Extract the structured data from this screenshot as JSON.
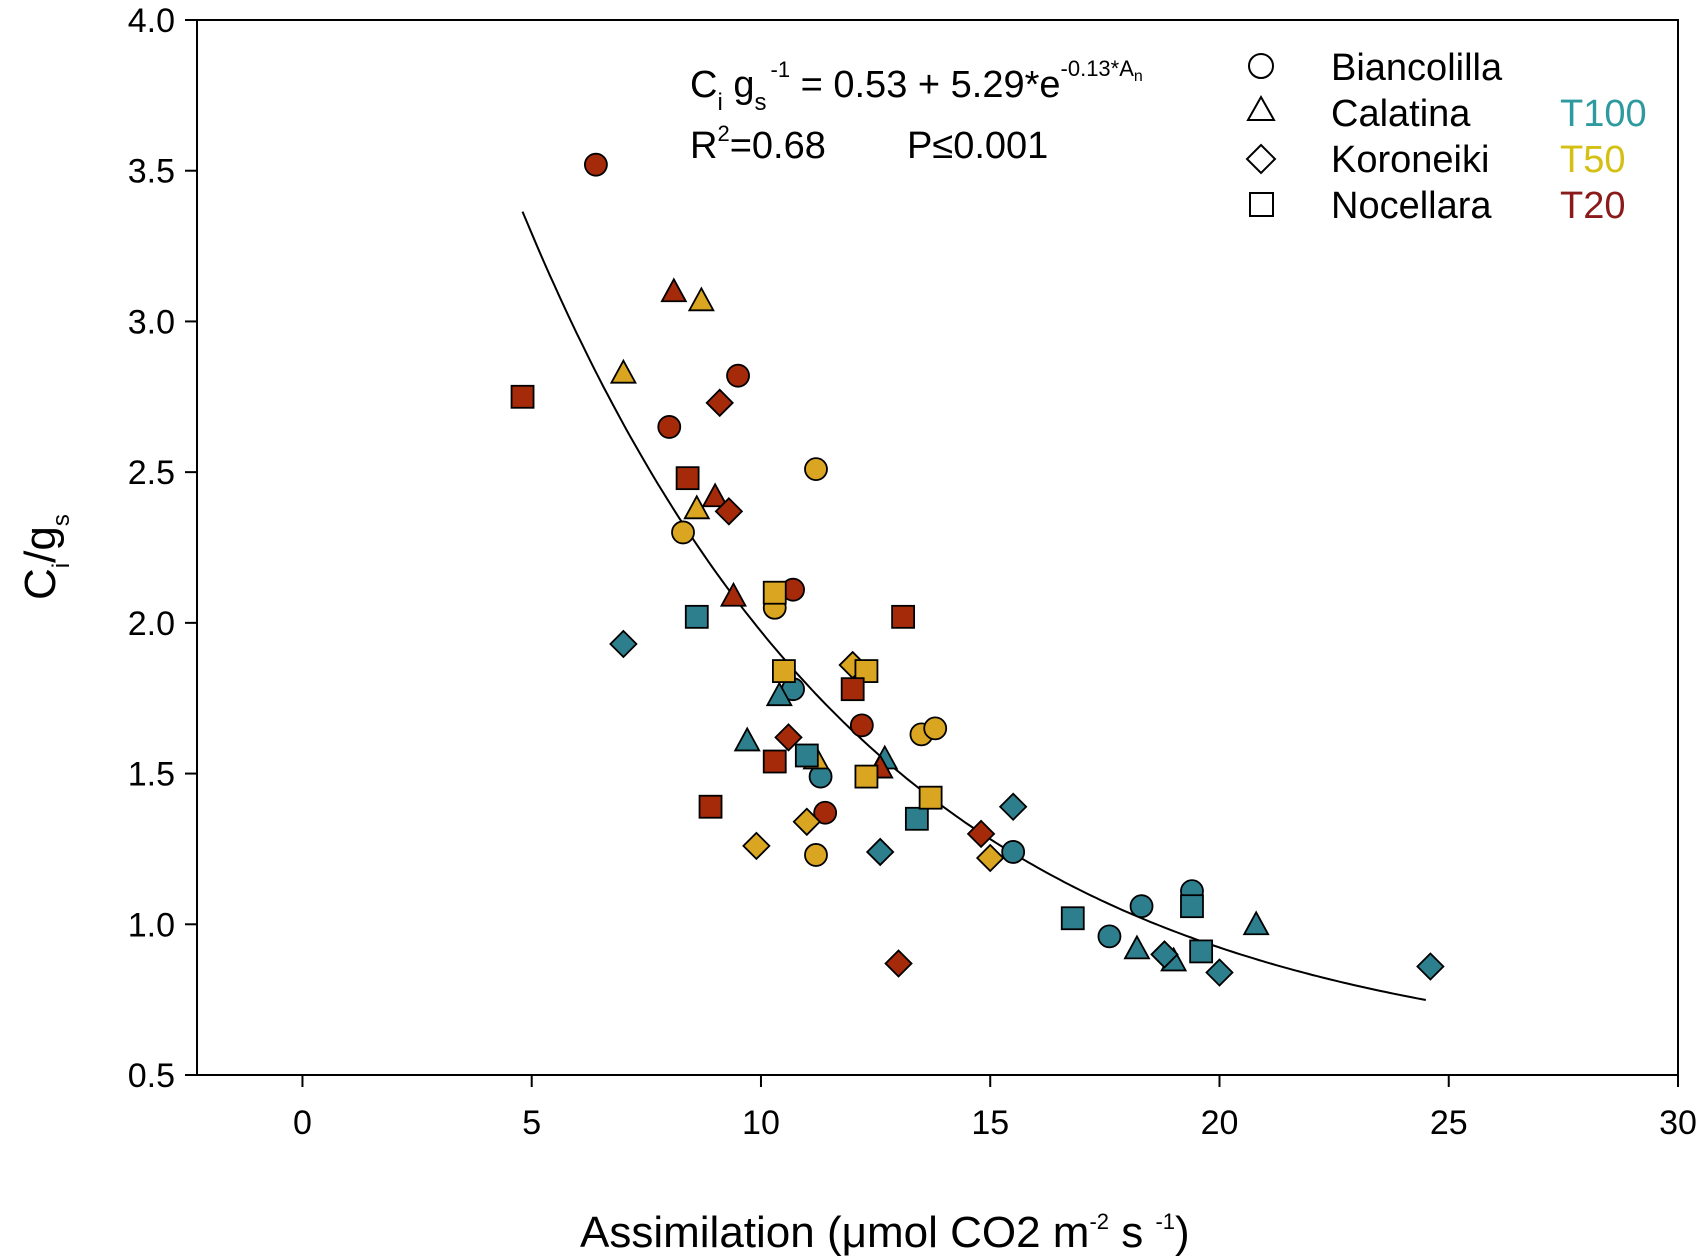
{
  "chart_data": {
    "type": "scatter",
    "title": "",
    "xlabel": {
      "main": "Assimilation (μmol CO2 m",
      "sup1": "-2",
      "mid": " s ",
      "sup2": "-1",
      "end": ")"
    },
    "ylabel": {
      "c": "C",
      "i": "i",
      "slash_g": "/g",
      "s": "s"
    },
    "xlim": [
      -2.3,
      30
    ],
    "ylim": [
      0.5,
      4.0
    ],
    "xticks": [
      "0",
      "5",
      "10",
      "15",
      "20",
      "25",
      "30"
    ],
    "yticks": [
      "0.5",
      "1.0",
      "1.5",
      "2.0",
      "2.5",
      "3.0",
      "3.5",
      "4.0"
    ],
    "grid": false,
    "equation": {
      "c": "C",
      "i": "i",
      "g": " g",
      "s": "s",
      "exp1": "-1",
      "rhs": " = 0.53 + 5.29*e",
      "exp2": "-0.13*A",
      "n": "n",
      "r2_label": "R",
      "r2_sup": "2",
      "r2_value": "=0.68",
      "p_value": "P≤0.001"
    },
    "fit": {
      "a": 0.53,
      "b": 5.29,
      "k": -0.13,
      "x_range": [
        4.8,
        24.5
      ]
    },
    "cultivars": [
      {
        "name": "Biancolilla",
        "shape": "circle"
      },
      {
        "name": "Calatina",
        "shape": "triangle"
      },
      {
        "name": "Koroneiki",
        "shape": "diamond"
      },
      {
        "name": "Nocellara",
        "shape": "square"
      }
    ],
    "treatments": [
      {
        "name": "T100",
        "color": "#2E7F8E"
      },
      {
        "name": "T50",
        "color": "#DAA520"
      },
      {
        "name": "T20",
        "color": "#A52A0A"
      }
    ],
    "series": [
      {
        "cultivar": "Biancolilla",
        "treatment": "T100",
        "points": [
          [
            10.7,
            1.78
          ],
          [
            11.3,
            1.49
          ],
          [
            15.5,
            1.24
          ],
          [
            17.6,
            0.96
          ],
          [
            18.3,
            1.06
          ],
          [
            19.4,
            1.11
          ]
        ]
      },
      {
        "cultivar": "Biancolilla",
        "treatment": "T50",
        "points": [
          [
            8.3,
            2.3
          ],
          [
            10.3,
            2.05
          ],
          [
            11.2,
            2.51
          ],
          [
            11.2,
            1.23
          ],
          [
            13.5,
            1.63
          ],
          [
            13.8,
            1.65
          ]
        ]
      },
      {
        "cultivar": "Biancolilla",
        "treatment": "T20",
        "points": [
          [
            6.4,
            3.52
          ],
          [
            8.0,
            2.65
          ],
          [
            9.5,
            2.82
          ],
          [
            10.7,
            2.11
          ],
          [
            11.4,
            1.37
          ],
          [
            12.2,
            1.66
          ]
        ]
      },
      {
        "cultivar": "Calatina",
        "treatment": "T100",
        "points": [
          [
            9.7,
            1.61
          ],
          [
            10.4,
            1.76
          ],
          [
            12.7,
            1.55
          ],
          [
            18.2,
            0.92
          ],
          [
            19.0,
            0.88
          ],
          [
            20.8,
            1.0
          ]
        ]
      },
      {
        "cultivar": "Calatina",
        "treatment": "T50",
        "points": [
          [
            7.0,
            2.83
          ],
          [
            8.6,
            2.38
          ],
          [
            8.7,
            3.07
          ],
          [
            11.2,
            1.55
          ]
        ]
      },
      {
        "cultivar": "Calatina",
        "treatment": "T20",
        "points": [
          [
            8.1,
            3.1
          ],
          [
            9.0,
            2.42
          ],
          [
            9.4,
            2.09
          ],
          [
            12.6,
            1.52
          ]
        ]
      },
      {
        "cultivar": "Koroneiki",
        "treatment": "T100",
        "points": [
          [
            7.0,
            1.93
          ],
          [
            12.6,
            1.24
          ],
          [
            15.5,
            1.39
          ],
          [
            18.8,
            0.9
          ],
          [
            20.0,
            0.84
          ],
          [
            24.6,
            0.86
          ]
        ]
      },
      {
        "cultivar": "Koroneiki",
        "treatment": "T50",
        "points": [
          [
            9.9,
            1.26
          ],
          [
            11.0,
            1.34
          ],
          [
            12.0,
            1.86
          ],
          [
            15.0,
            1.22
          ]
        ]
      },
      {
        "cultivar": "Koroneiki",
        "treatment": "T20",
        "points": [
          [
            9.1,
            2.73
          ],
          [
            9.3,
            2.37
          ],
          [
            10.6,
            1.62
          ],
          [
            13.0,
            0.87
          ],
          [
            14.8,
            1.3
          ]
        ]
      },
      {
        "cultivar": "Nocellara",
        "treatment": "T100",
        "points": [
          [
            8.6,
            2.02
          ],
          [
            11.0,
            1.56
          ],
          [
            13.4,
            1.35
          ],
          [
            16.8,
            1.02
          ],
          [
            19.4,
            1.06
          ],
          [
            19.6,
            0.91
          ]
        ]
      },
      {
        "cultivar": "Nocellara",
        "treatment": "T50",
        "points": [
          [
            10.3,
            2.1
          ],
          [
            10.5,
            1.84
          ],
          [
            12.3,
            1.49
          ],
          [
            12.3,
            1.84
          ],
          [
            13.7,
            1.42
          ]
        ]
      },
      {
        "cultivar": "Nocellara",
        "treatment": "T20",
        "points": [
          [
            4.8,
            2.75
          ],
          [
            8.4,
            2.48
          ],
          [
            8.9,
            1.39
          ],
          [
            10.3,
            1.54
          ],
          [
            12.0,
            1.78
          ],
          [
            13.1,
            2.02
          ]
        ]
      }
    ]
  }
}
